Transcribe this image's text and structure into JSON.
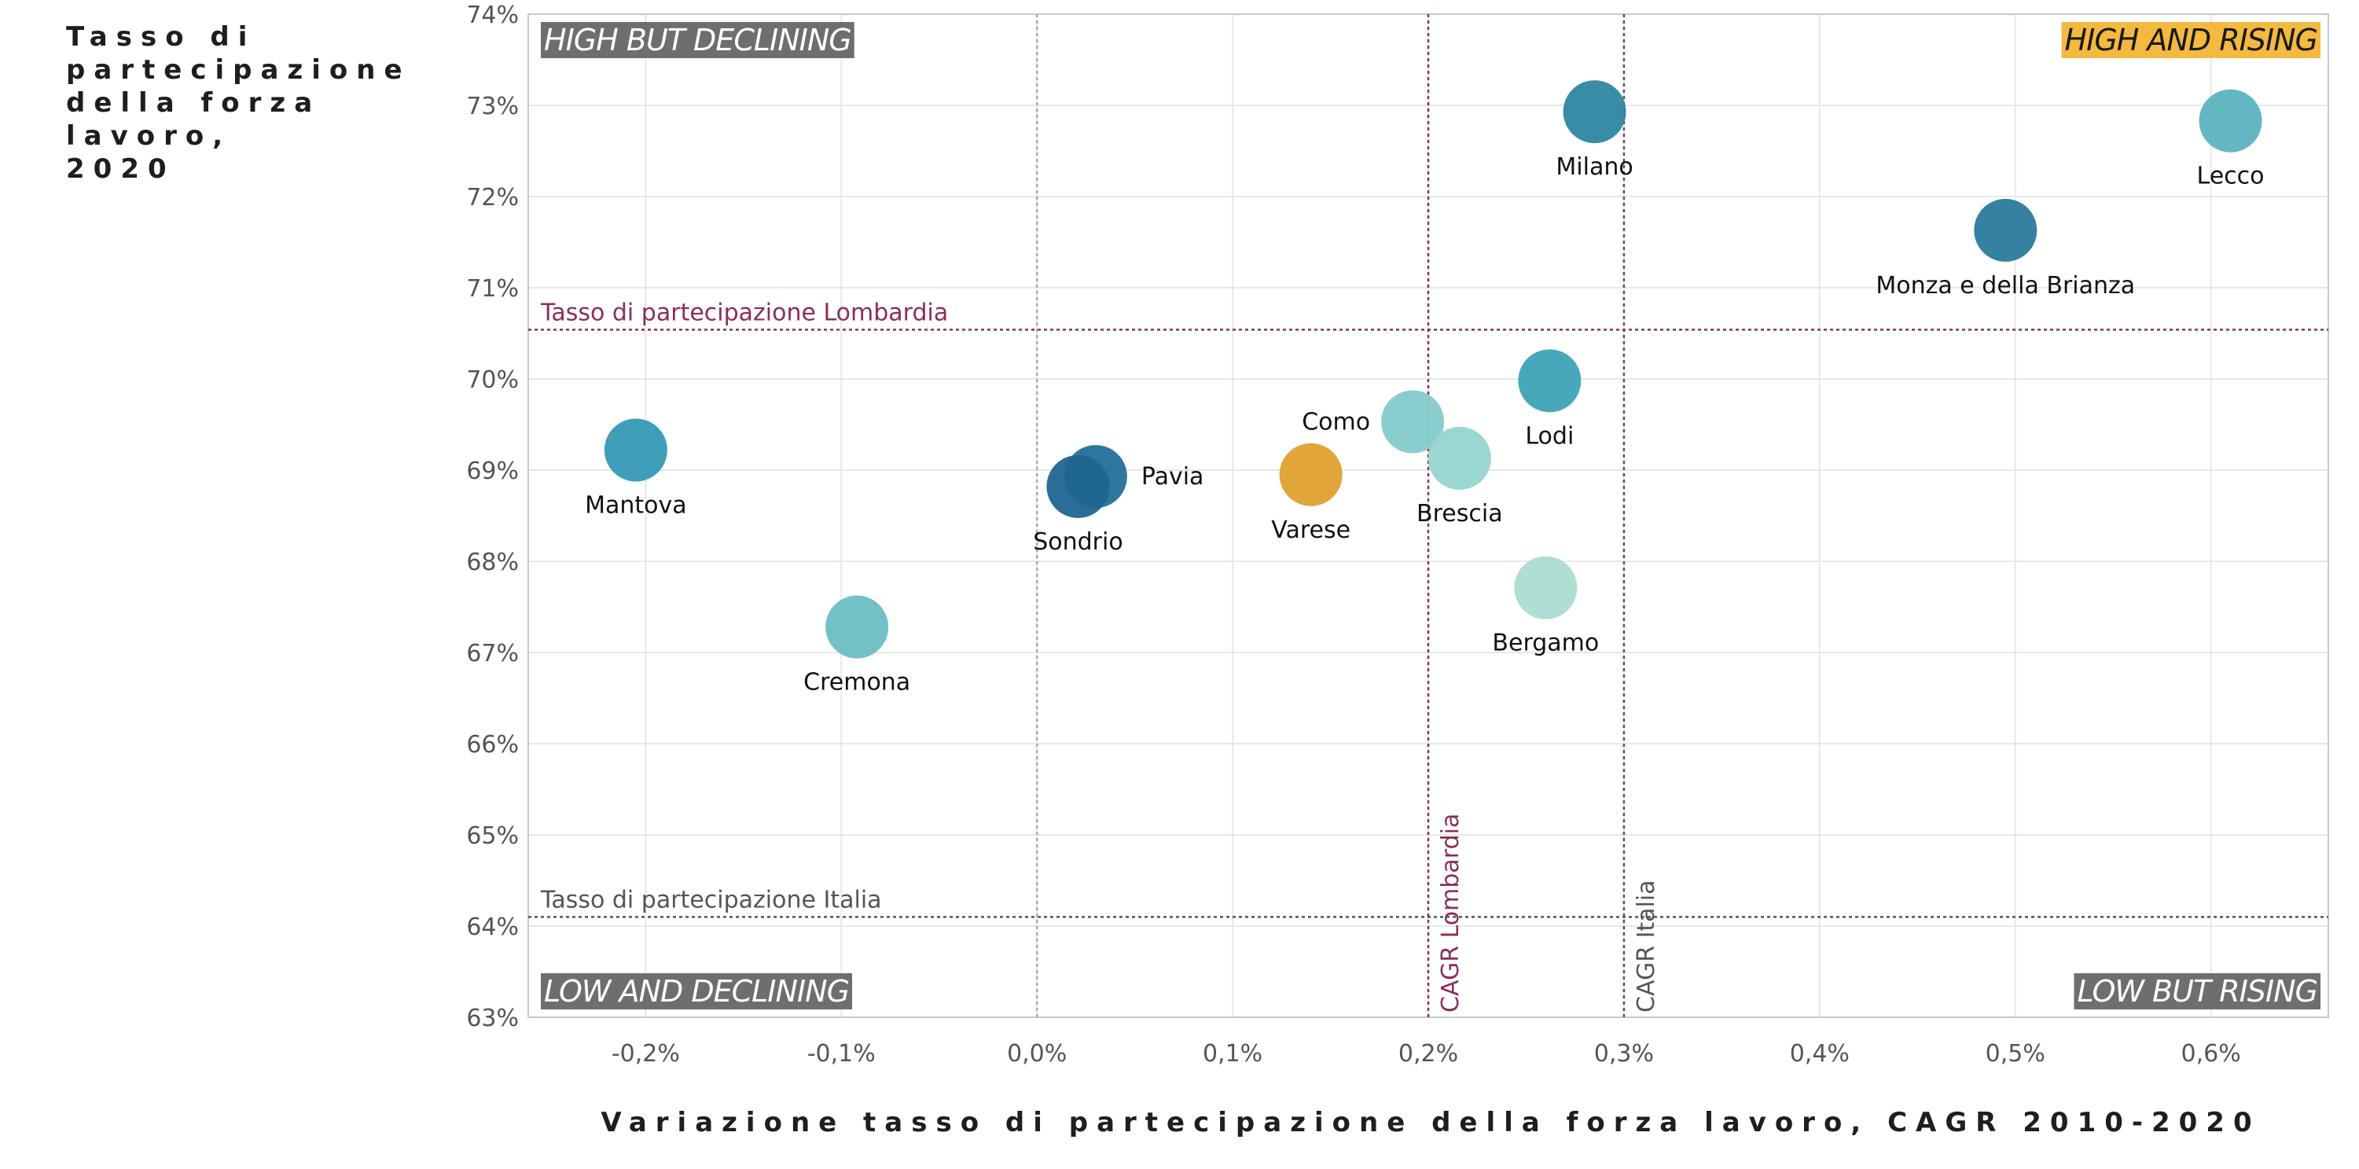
{
  "chart_data": {
    "type": "scatter",
    "ylabel_lines": [
      "Tasso di",
      "partecipazione",
      "della forza lavoro,",
      "2020"
    ],
    "xlabel": "Variazione tasso di partecipazione della forza lavoro, CAGR 2010-2020",
    "xlim": [
      -0.0026,
      0.0066
    ],
    "ylim": [
      0.63,
      0.74
    ],
    "x_ticks": [
      -0.002,
      -0.001,
      0.0,
      0.001,
      0.002,
      0.003,
      0.004,
      0.005,
      0.006
    ],
    "x_tick_labels": [
      "-0,2%",
      "-0,1%",
      "0,0%",
      "0,1%",
      "0,2%",
      "0,3%",
      "0,4%",
      "0,5%",
      "0,6%"
    ],
    "y_ticks": [
      0.63,
      0.64,
      0.65,
      0.66,
      0.67,
      0.68,
      0.69,
      0.7,
      0.71,
      0.72,
      0.73,
      0.74
    ],
    "y_tick_labels": [
      "63%",
      "64%",
      "65%",
      "66%",
      "67%",
      "68%",
      "69%",
      "70%",
      "71%",
      "72%",
      "73%",
      "74%"
    ],
    "grid": true,
    "points": [
      {
        "label": "Lecco",
        "x": 0.0061,
        "y": 0.7283,
        "color": "#5bb3bf",
        "label_pos": "below"
      },
      {
        "label": "Milano",
        "x": 0.00285,
        "y": 0.7293,
        "color": "#2e86a0",
        "label_pos": "below"
      },
      {
        "label": "Monza e della Brianza",
        "x": 0.00495,
        "y": 0.7163,
        "color": "#2a7b9b",
        "label_pos": "below"
      },
      {
        "label": "Lodi",
        "x": 0.00262,
        "y": 0.6998,
        "color": "#3ea3b7",
        "label_pos": "below"
      },
      {
        "label": "Como",
        "x": 0.00192,
        "y": 0.6953,
        "color": "#84cacb",
        "label_pos": "left"
      },
      {
        "label": "Brescia",
        "x": 0.00216,
        "y": 0.6913,
        "color": "#96d4cf",
        "label_pos": "below"
      },
      {
        "label": "Varese",
        "x": 0.0014,
        "y": 0.6895,
        "color": "#dfa02f",
        "label_pos": "below"
      },
      {
        "label": "Pavia",
        "x": 0.0003,
        "y": 0.6893,
        "color": "#236f98",
        "label_pos": "right"
      },
      {
        "label": "Sondrio",
        "x": 0.00021,
        "y": 0.6882,
        "color": "#1f6590",
        "label_pos": "below"
      },
      {
        "label": "Mantova",
        "x": -0.00205,
        "y": 0.6922,
        "color": "#3499b5",
        "label_pos": "below"
      },
      {
        "label": "Cremona",
        "x": -0.00092,
        "y": 0.6728,
        "color": "#6bbdc4",
        "label_pos": "below"
      },
      {
        "label": "Bergamo",
        "x": 0.0026,
        "y": 0.6771,
        "color": "#aadcd2",
        "label_pos": "below"
      }
    ],
    "reference_lines": [
      {
        "axis": "y",
        "value": 0.7054,
        "label": "Tasso di partecipazione Lombardia",
        "color": "#8b2e58"
      },
      {
        "axis": "y",
        "value": 0.641,
        "label": "Tasso di partecipazione Italia",
        "color": "#555555"
      },
      {
        "axis": "x",
        "value": 0.002,
        "label": "CAGR Lombardia",
        "color": "#8b2e58"
      },
      {
        "axis": "x",
        "value": 0.003,
        "label": "CAGR Italia",
        "color": "#555555"
      },
      {
        "axis": "x",
        "value": 0.0,
        "label": "",
        "color": "#aaaaaa"
      }
    ],
    "quadrant_labels": [
      {
        "text": "HIGH BUT DECLINING",
        "corner": "top-left",
        "bg": "#6e6e6e",
        "color": "#ffffff"
      },
      {
        "text": "HIGH AND RISING",
        "corner": "top-right",
        "bg": "#f4b940",
        "color": "#1a1a1a"
      },
      {
        "text": "LOW AND DECLINING",
        "corner": "bottom-left",
        "bg": "#6e6e6e",
        "color": "#ffffff"
      },
      {
        "text": "LOW BUT RISING",
        "corner": "bottom-right",
        "bg": "#6e6e6e",
        "color": "#ffffff"
      }
    ]
  }
}
